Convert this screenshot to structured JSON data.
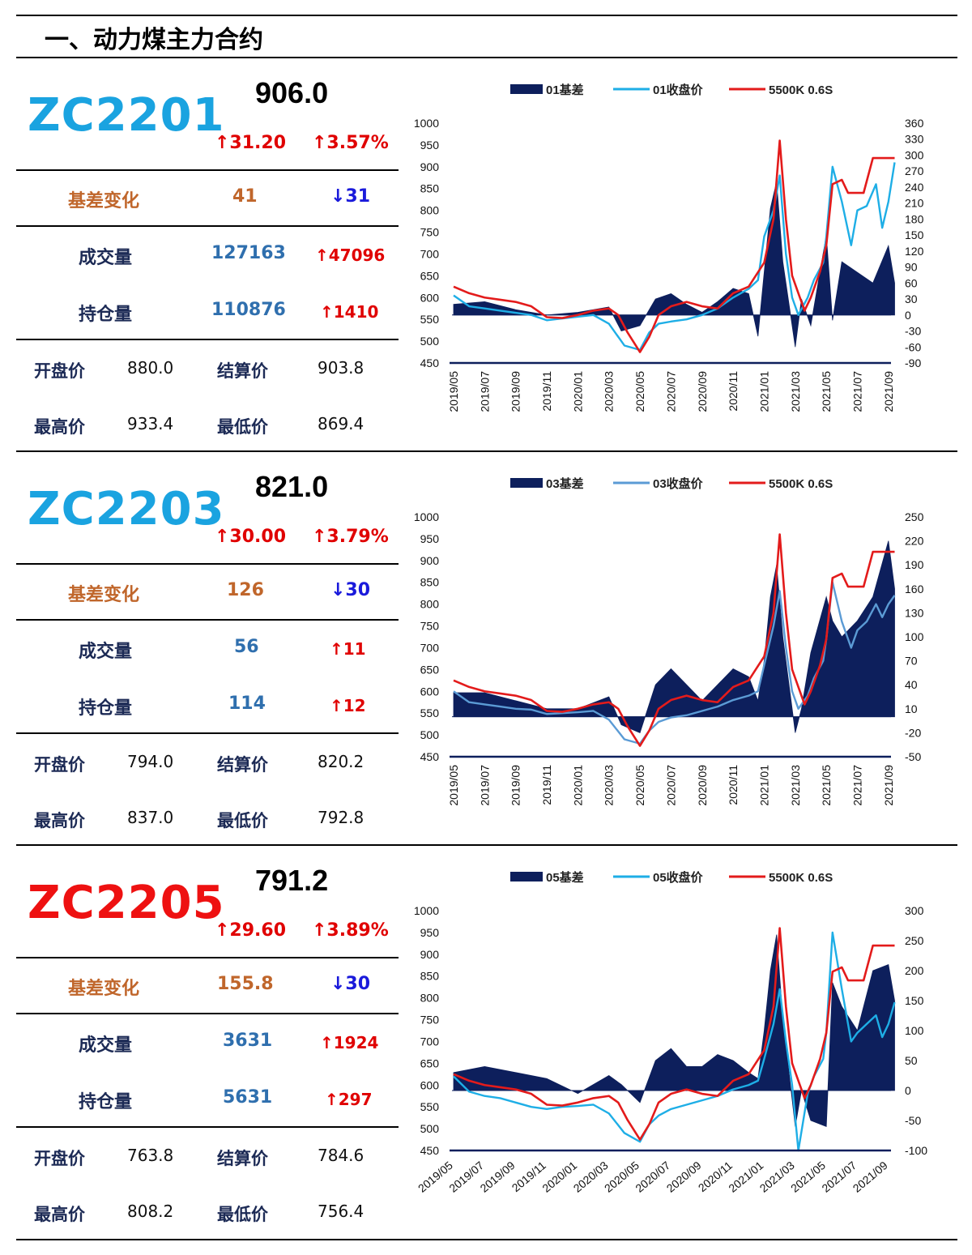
{
  "section_title": "一、动力煤主力合约",
  "colors": {
    "bar": "#0d1f5c",
    "red": "#e31b1b",
    "cyan": "#1eaee6",
    "lightblue": "#5b9bd5"
  },
  "panels": [
    {
      "code": "ZC2201",
      "code_color": "#1aa3e0",
      "price": "906.0",
      "change": "↑31.20",
      "change_pct": "↑3.57%",
      "basis_label": "基差变化",
      "basis": "41",
      "basis_change": "↓31",
      "volume_label": "成交量",
      "volume": "127163",
      "volume_change": "↑47096",
      "oi_label": "持仓量",
      "oi": "110876",
      "oi_change": "↑1410",
      "open_label": "开盘价",
      "open": "880.0",
      "settle_label": "结算价",
      "settle": "903.8",
      "high_label": "最高价",
      "high": "933.4",
      "low_label": "最低价",
      "low": "869.4"
    },
    {
      "code": "ZC2203",
      "code_color": "#1aa3e0",
      "price": "821.0",
      "change": "↑30.00",
      "change_pct": "↑3.79%",
      "basis_label": "基差变化",
      "basis": "126",
      "basis_change": "↓30",
      "volume_label": "成交量",
      "volume": "56",
      "volume_change": "↑11",
      "oi_label": "持仓量",
      "oi": "114",
      "oi_change": "↑12",
      "open_label": "开盘价",
      "open": "794.0",
      "settle_label": "结算价",
      "settle": "820.2",
      "high_label": "最高价",
      "high": "837.0",
      "low_label": "最低价",
      "low": "792.8"
    },
    {
      "code": "ZC2205",
      "code_color": "#ee1111",
      "price": "791.2",
      "change": "↑29.60",
      "change_pct": "↑3.89%",
      "basis_label": "基差变化",
      "basis": "155.8",
      "basis_change": "↓30",
      "volume_label": "成交量",
      "volume": "3631",
      "volume_change": "↑1924",
      "oi_label": "持仓量",
      "oi": "5631",
      "oi_change": "↑297",
      "open_label": "开盘价",
      "open": "763.8",
      "settle_label": "结算价",
      "settle": "784.6",
      "high_label": "最高价",
      "high": "808.2",
      "low_label": "最低价",
      "low": "756.4"
    }
  ],
  "chart_data": [
    {
      "type": "line",
      "legend": [
        "01基差",
        "01收盘价",
        "5500K 0.6S"
      ],
      "legend_placement": "top",
      "x": [
        "2019/05",
        "2019/07",
        "2019/09",
        "2019/11",
        "2020/01",
        "2020/03",
        "2020/05",
        "2020/07",
        "2020/09",
        "2020/11",
        "2021/01",
        "2021/03",
        "2021/05",
        "2021/07",
        "2021/09"
      ],
      "y_left_ticks": [
        1000,
        950,
        900,
        850,
        800,
        750,
        700,
        650,
        600,
        550,
        500,
        450
      ],
      "y_right_ticks": [
        360,
        330,
        300,
        270,
        240,
        210,
        180,
        150,
        120,
        90,
        60,
        30,
        0,
        -30,
        -60,
        -90
      ],
      "ylim_left": [
        450,
        1000
      ],
      "ylim_right": [
        -90,
        360
      ],
      "series": [
        {
          "name": "01基差",
          "kind": "area",
          "axis": "right",
          "x": [
            0,
            1,
            2,
            3,
            4,
            5,
            5.4,
            6,
            6.5,
            7,
            7.5,
            8,
            8.5,
            9,
            9.5,
            9.8,
            10,
            10.2,
            10.4,
            10.6,
            11,
            11.2,
            11.5,
            12,
            12.2,
            12.5,
            13,
            13.5,
            14,
            14.2
          ],
          "values": [
            20,
            25,
            10,
            0,
            5,
            15,
            -30,
            -20,
            30,
            40,
            20,
            5,
            25,
            50,
            40,
            -40,
            80,
            200,
            250,
            100,
            -60,
            30,
            -20,
            150,
            -10,
            100,
            80,
            60,
            130,
            60
          ]
        },
        {
          "name": "01收盘价",
          "kind": "line",
          "axis": "left",
          "x": [
            0,
            0.5,
            1,
            1.5,
            2,
            2.5,
            3,
            3.5,
            4,
            4.5,
            5,
            5.5,
            6,
            6.3,
            6.6,
            7,
            7.5,
            8,
            8.5,
            9,
            9.5,
            9.8,
            10,
            10.3,
            10.5,
            10.7,
            10.9,
            11.1,
            11.4,
            11.6,
            11.9,
            12,
            12.2,
            12.5,
            12.8,
            13,
            13.3,
            13.6,
            13.8,
            14,
            14.2
          ],
          "values": [
            605,
            580,
            575,
            570,
            565,
            560,
            548,
            552,
            556,
            560,
            540,
            490,
            480,
            520,
            540,
            545,
            550,
            560,
            575,
            600,
            620,
            640,
            740,
            800,
            880,
            700,
            600,
            560,
            600,
            640,
            680,
            740,
            900,
            820,
            720,
            800,
            810,
            860,
            760,
            820,
            910
          ]
        },
        {
          "name": "5500K 0.6S",
          "kind": "line",
          "axis": "left",
          "x": [
            0,
            0.5,
            1,
            1.5,
            2,
            2.5,
            3,
            3.5,
            4,
            4.5,
            5,
            5.3,
            5.6,
            6,
            6.3,
            6.6,
            7,
            7.5,
            8,
            8.5,
            9,
            9.5,
            10,
            10.3,
            10.5,
            10.7,
            10.9,
            11.1,
            11.3,
            11.5,
            11.8,
            12,
            12.2,
            12.5,
            12.7,
            13,
            13.2,
            13.5,
            14,
            14.2
          ],
          "values": [
            625,
            610,
            600,
            595,
            590,
            580,
            555,
            553,
            560,
            570,
            575,
            560,
            520,
            475,
            510,
            560,
            580,
            590,
            580,
            575,
            610,
            625,
            680,
            780,
            960,
            780,
            650,
            610,
            570,
            600,
            660,
            720,
            860,
            870,
            840,
            840,
            840,
            920,
            920,
            920
          ]
        }
      ]
    },
    {
      "type": "line",
      "legend": [
        "03基差",
        "03收盘价",
        "5500K 0.6S"
      ],
      "legend_placement": "top",
      "x": [
        "2019/05",
        "2019/07",
        "2019/09",
        "2019/11",
        "2020/01",
        "2020/03",
        "2020/05",
        "2020/07",
        "2020/09",
        "2020/11",
        "2021/01",
        "2021/03",
        "2021/05",
        "2021/07",
        "2021/09"
      ],
      "y_left_ticks": [
        1000,
        950,
        900,
        850,
        800,
        750,
        700,
        650,
        600,
        550,
        500,
        450
      ],
      "y_right_ticks": [
        250,
        220,
        190,
        160,
        130,
        100,
        70,
        40,
        10,
        -20,
        -50
      ],
      "ylim_left": [
        450,
        1000
      ],
      "ylim_right": [
        -50,
        250
      ],
      "series": [
        {
          "name": "03基差",
          "kind": "area",
          "axis": "right",
          "x": [
            0,
            1,
            2,
            3,
            4,
            5,
            5.4,
            6,
            6.5,
            7,
            7.5,
            8,
            8.5,
            9,
            9.5,
            9.8,
            10,
            10.2,
            10.4,
            10.6,
            11,
            11.2,
            11.5,
            12,
            12.2,
            12.5,
            13,
            13.5,
            14,
            14.2
          ],
          "values": [
            30,
            30,
            20,
            10,
            10,
            25,
            -10,
            -20,
            40,
            60,
            40,
            20,
            40,
            60,
            50,
            20,
            70,
            150,
            190,
            100,
            -20,
            10,
            80,
            150,
            120,
            100,
            120,
            150,
            220,
            160
          ]
        },
        {
          "name": "03收盘价",
          "kind": "line",
          "axis": "left",
          "x": [
            0,
            0.5,
            1,
            1.5,
            2,
            2.5,
            3,
            3.5,
            4,
            4.5,
            5,
            5.5,
            6,
            6.3,
            6.6,
            7,
            7.5,
            8,
            8.5,
            9,
            9.5,
            9.8,
            10,
            10.3,
            10.5,
            10.7,
            10.9,
            11.1,
            11.4,
            11.6,
            11.9,
            12,
            12.2,
            12.5,
            12.8,
            13,
            13.3,
            13.6,
            13.8,
            14,
            14.2
          ],
          "values": [
            600,
            575,
            570,
            565,
            560,
            558,
            548,
            550,
            552,
            555,
            535,
            490,
            480,
            510,
            530,
            540,
            545,
            555,
            565,
            580,
            590,
            600,
            660,
            750,
            830,
            700,
            600,
            560,
            590,
            630,
            670,
            720,
            850,
            760,
            700,
            740,
            760,
            800,
            770,
            800,
            820
          ]
        },
        {
          "name": "5500K 0.6S",
          "kind": "line",
          "axis": "left",
          "x": [
            0,
            0.5,
            1,
            1.5,
            2,
            2.5,
            3,
            3.5,
            4,
            4.5,
            5,
            5.3,
            5.6,
            6,
            6.3,
            6.6,
            7,
            7.5,
            8,
            8.5,
            9,
            9.5,
            10,
            10.3,
            10.5,
            10.7,
            10.9,
            11.1,
            11.3,
            11.5,
            11.8,
            12,
            12.2,
            12.5,
            12.7,
            13,
            13.2,
            13.5,
            14,
            14.2
          ],
          "values": [
            625,
            610,
            600,
            595,
            590,
            580,
            555,
            553,
            560,
            570,
            575,
            560,
            520,
            475,
            510,
            560,
            580,
            590,
            580,
            575,
            610,
            625,
            680,
            780,
            960,
            780,
            650,
            610,
            570,
            600,
            660,
            720,
            860,
            870,
            840,
            840,
            840,
            920,
            920,
            920
          ]
        }
      ]
    },
    {
      "type": "line",
      "legend": [
        "05基差",
        "05收盘价",
        "5500K 0.6S"
      ],
      "legend_placement": "top",
      "x": [
        "2019/05",
        "2019/07",
        "2019/09",
        "2019/11",
        "2020/01",
        "2020/03",
        "2020/05",
        "2020/07",
        "2020/09",
        "2020/11",
        "2021/01",
        "2021/03",
        "2021/05",
        "2021/07",
        "2021/09"
      ],
      "y_left_ticks": [
        1000,
        950,
        900,
        850,
        800,
        750,
        700,
        650,
        600,
        550,
        500,
        450
      ],
      "y_right_ticks": [
        300,
        250,
        200,
        150,
        100,
        50,
        0,
        -50,
        -100
      ],
      "ylim_left": [
        450,
        1000
      ],
      "ylim_right": [
        -100,
        300
      ],
      "series": [
        {
          "name": "05基差",
          "kind": "area",
          "axis": "right",
          "x": [
            0,
            1,
            2,
            3,
            4,
            5,
            5.4,
            6,
            6.5,
            7,
            7.5,
            8,
            8.5,
            9,
            9.5,
            9.8,
            10,
            10.2,
            10.4,
            10.6,
            11,
            11.2,
            11.5,
            12,
            12.2,
            12.5,
            13,
            13.5,
            14,
            14.2
          ],
          "values": [
            30,
            40,
            30,
            20,
            -5,
            25,
            10,
            -20,
            50,
            70,
            40,
            40,
            60,
            50,
            30,
            20,
            100,
            200,
            260,
            120,
            -60,
            0,
            -50,
            -60,
            180,
            140,
            100,
            200,
            210,
            150
          ]
        },
        {
          "name": "05收盘价",
          "kind": "line",
          "axis": "left",
          "x": [
            0,
            0.5,
            1,
            1.5,
            2,
            2.5,
            3,
            3.5,
            4,
            4.5,
            5,
            5.5,
            6,
            6.3,
            6.6,
            7,
            7.5,
            8,
            8.5,
            9,
            9.5,
            9.8,
            10,
            10.3,
            10.5,
            10.7,
            10.9,
            11.1,
            11.4,
            11.6,
            11.9,
            12,
            12.2,
            12.5,
            12.8,
            13,
            13.3,
            13.6,
            13.8,
            14,
            14.2
          ],
          "values": [
            620,
            585,
            575,
            570,
            560,
            550,
            545,
            550,
            552,
            555,
            535,
            490,
            470,
            510,
            530,
            545,
            555,
            565,
            575,
            590,
            600,
            610,
            660,
            740,
            820,
            700,
            600,
            450,
            580,
            620,
            660,
            720,
            950,
            820,
            700,
            720,
            740,
            760,
            710,
            740,
            790
          ]
        },
        {
          "name": "5500K 0.6S",
          "kind": "line",
          "axis": "left",
          "x": [
            0,
            0.5,
            1,
            1.5,
            2,
            2.5,
            3,
            3.5,
            4,
            4.5,
            5,
            5.3,
            5.6,
            6,
            6.3,
            6.6,
            7,
            7.5,
            8,
            8.5,
            9,
            9.5,
            10,
            10.3,
            10.5,
            10.7,
            10.9,
            11.1,
            11.3,
            11.5,
            11.8,
            12,
            12.2,
            12.5,
            12.7,
            13,
            13.2,
            13.5,
            14,
            14.2
          ],
          "values": [
            625,
            610,
            600,
            595,
            590,
            580,
            555,
            553,
            560,
            570,
            575,
            560,
            520,
            475,
            510,
            560,
            580,
            590,
            580,
            575,
            610,
            625,
            680,
            780,
            960,
            780,
            650,
            610,
            570,
            600,
            660,
            720,
            860,
            870,
            840,
            840,
            840,
            920,
            920,
            920
          ]
        }
      ]
    }
  ]
}
